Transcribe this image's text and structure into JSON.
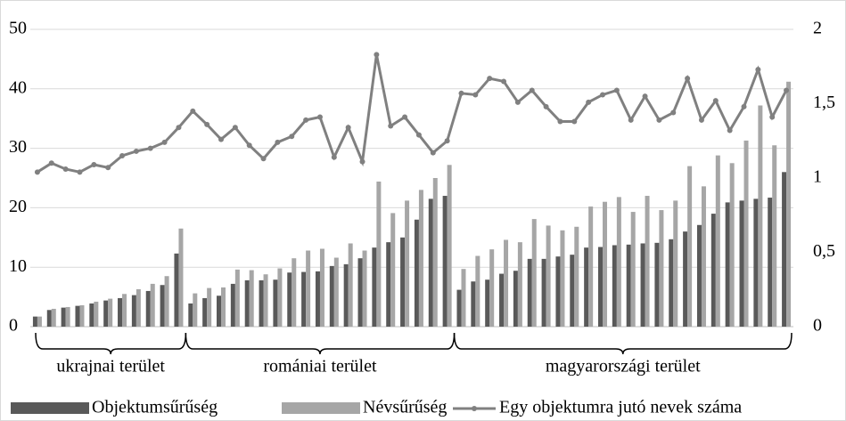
{
  "chart_data": {
    "type": "bar-line",
    "categories": [
      null,
      null,
      null,
      null,
      null,
      null,
      null,
      null,
      null,
      null,
      null,
      null,
      null,
      null,
      null,
      null,
      null,
      null,
      null,
      null,
      null,
      null,
      null,
      null,
      null,
      null,
      null,
      null,
      null,
      null,
      null,
      null,
      null,
      null,
      null,
      null,
      null,
      null,
      null,
      null,
      null,
      null,
      null,
      null,
      null,
      null,
      null,
      null,
      null,
      null,
      null,
      null,
      null,
      null
    ],
    "groups": [
      {
        "label": "ukrajnai terület",
        "count": 11
      },
      {
        "label": "romániai terület",
        "count": 19
      },
      {
        "label": "magyarországi terület",
        "count": 24
      }
    ],
    "series": [
      {
        "name": "Objektumsűrűség",
        "type": "bar",
        "color": "#595959",
        "values": [
          1.7,
          2.8,
          3.2,
          3.5,
          3.9,
          4.4,
          4.8,
          5.3,
          6.0,
          7.0,
          12.3,
          3.9,
          4.8,
          5.2,
          7.2,
          7.8,
          7.8,
          7.9,
          9.1,
          9.2,
          9.3,
          10.2,
          10.5,
          11.5,
          13.3,
          14.2,
          15.0,
          18.0,
          21.5,
          22.0,
          6.2,
          7.6,
          7.9,
          8.9,
          9.4,
          11.4,
          11.4,
          11.8,
          12.1,
          13.3,
          13.4,
          13.7,
          13.8,
          14.0,
          14.1,
          14.7,
          16.0,
          17.1,
          19.0,
          20.9,
          21.2,
          21.5,
          21.7,
          26.0
        ]
      },
      {
        "name": "Névsűrűség",
        "type": "bar",
        "color": "#a6a6a6",
        "values": [
          1.7,
          3.0,
          3.3,
          3.6,
          4.2,
          4.7,
          5.5,
          6.3,
          7.2,
          8.5,
          16.5,
          5.6,
          6.5,
          6.6,
          9.6,
          9.5,
          8.8,
          9.8,
          11.5,
          12.8,
          13.1,
          11.6,
          14.0,
          12.8,
          24.4,
          19.1,
          21.2,
          23.0,
          25.0,
          27.2,
          9.7,
          11.9,
          13.0,
          14.6,
          14.2,
          18.1,
          17.0,
          16.2,
          16.8,
          20.2,
          21.0,
          21.8,
          19.3,
          22.0,
          19.6,
          21.2,
          27.0,
          23.6,
          28.8,
          27.5,
          31.3,
          37.2,
          30.5,
          41.2
        ]
      },
      {
        "name": "Egy objektumra jutó nevek száma",
        "type": "line",
        "axis": "y2",
        "color": "#808080",
        "values": [
          1.04,
          1.1,
          1.06,
          1.04,
          1.09,
          1.07,
          1.15,
          1.18,
          1.2,
          1.24,
          1.34,
          1.45,
          1.36,
          1.26,
          1.34,
          1.22,
          1.13,
          1.24,
          1.28,
          1.39,
          1.41,
          1.14,
          1.34,
          1.11,
          1.83,
          1.35,
          1.41,
          1.29,
          1.17,
          1.25,
          1.57,
          1.56,
          1.67,
          1.65,
          1.51,
          1.59,
          1.48,
          1.38,
          1.38,
          1.51,
          1.56,
          1.59,
          1.39,
          1.55,
          1.39,
          1.44,
          1.67,
          1.39,
          1.52,
          1.32,
          1.48,
          1.73,
          1.41,
          1.59
        ]
      }
    ],
    "ylim": [
      0,
      50
    ],
    "yticks": [
      0,
      10,
      20,
      30,
      40,
      50
    ],
    "y2lim": [
      0,
      2
    ],
    "y2ticks": [
      0,
      {
        "value": 0.5,
        "label": "0,5"
      },
      1,
      {
        "value": 1.5,
        "label": "1,5"
      },
      2
    ],
    "grid": true,
    "legend": "bottom"
  }
}
